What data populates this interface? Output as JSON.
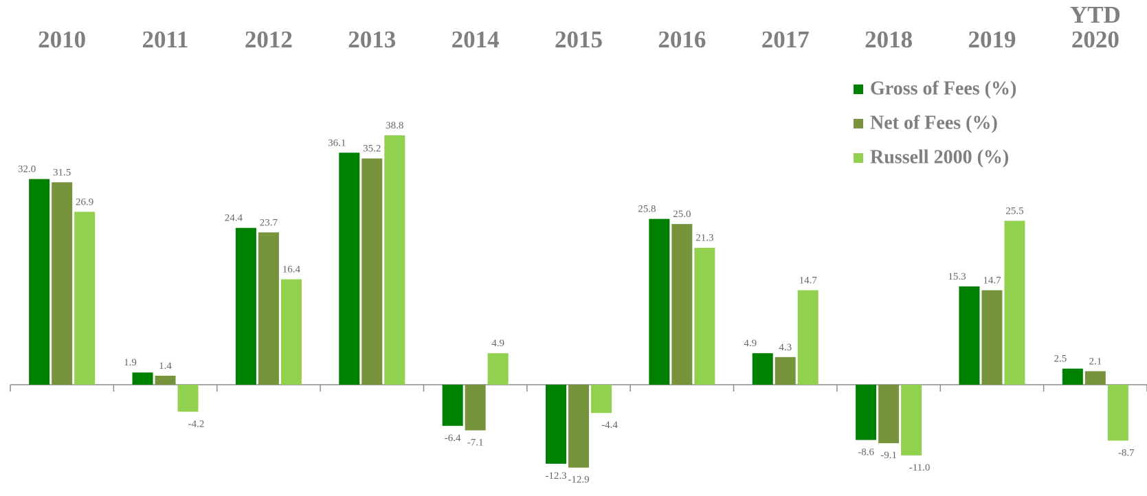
{
  "chart_data": {
    "type": "bar",
    "categories": [
      "2010",
      "2011",
      "2012",
      "2013",
      "2014",
      "2015",
      "2016",
      "2017",
      "2018",
      "2019",
      "YTD 2020"
    ],
    "series": [
      {
        "name": "Gross of Fees (%)",
        "color": "#008000",
        "values": [
          32.0,
          1.9,
          24.4,
          36.1,
          -6.4,
          -12.3,
          25.8,
          4.9,
          -8.6,
          15.3,
          2.5
        ],
        "value_labels": [
          "32.0",
          "1.9",
          "24.4",
          "36.1",
          "-6.4",
          "-12.3",
          "25.8",
          "4.9",
          "-8.6",
          "15.3",
          "2.5"
        ]
      },
      {
        "name": "Net of Fees (%)",
        "color": "#77933c",
        "values": [
          31.5,
          1.4,
          23.7,
          35.2,
          -7.1,
          -12.9,
          25.0,
          4.3,
          -9.1,
          14.7,
          2.1
        ],
        "value_labels": [
          "31.5",
          "1.4",
          "23.7",
          "35.2",
          "-7.1",
          "-12.9",
          "25.0",
          "4.3",
          "-9.1",
          "14.7",
          "2.1"
        ]
      },
      {
        "name": "Russell 2000 (%)",
        "color": "#92d050",
        "values": [
          26.9,
          -4.2,
          16.4,
          38.8,
          4.9,
          -4.4,
          21.3,
          14.7,
          -11.0,
          25.5,
          -8.7
        ],
        "value_labels": [
          "26.9",
          "-4.2",
          "16.4",
          "38.8",
          "4.9",
          "-4.4",
          "21.3",
          "14.7",
          "-11.0",
          "25.5",
          "-8.7"
        ]
      }
    ]
  }
}
